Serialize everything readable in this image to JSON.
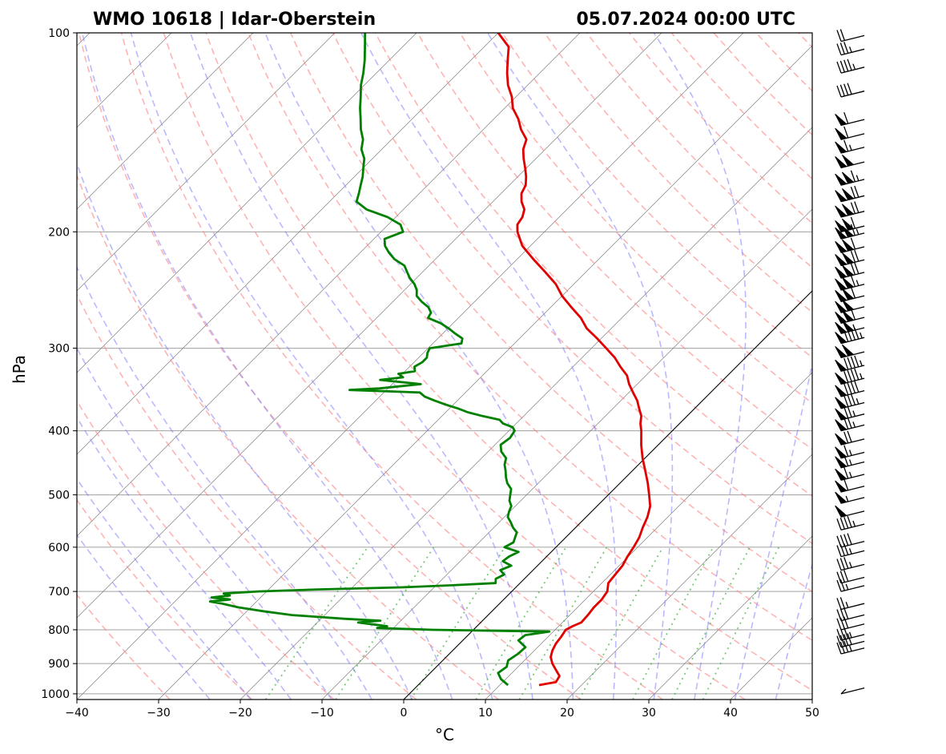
{
  "chart_data": {
    "type": "line",
    "title_left": "WMO 10618 | Idar-Oberstein",
    "title_right": "05.07.2024 00:00 UTC",
    "xlabel": "°C",
    "ylabel": "hPa",
    "xlim": [
      -40,
      50
    ],
    "ylim": [
      1020,
      100
    ],
    "y_scale": "log",
    "x_ticks": [
      -40,
      -30,
      -20,
      -10,
      0,
      10,
      20,
      30,
      40,
      50
    ],
    "x_tick_labels": [
      "−40",
      "−30",
      "−20",
      "−10",
      "0",
      "10",
      "20",
      "30",
      "40",
      "50"
    ],
    "y_ticks": [
      1000,
      900,
      800,
      700,
      600,
      500,
      400,
      300,
      200,
      100
    ],
    "y_tick_labels": [
      "1000",
      "900",
      "800",
      "700",
      "600",
      "500",
      "400",
      "300",
      "200",
      "100"
    ],
    "skew": 45,
    "grid": true,
    "colors": {
      "temperature": "#e00000",
      "dewpoint": "#008000",
      "dry_adiabats": "#ff8080",
      "moist_adiabats": "#8080ff",
      "mixing_ratio": "#40b040",
      "isotherms": "#808080",
      "isobars": "#a0a0a0",
      "zero_isotherm": "#000000"
    },
    "series": [
      {
        "name": "temperature",
        "points": [
          [
            970,
            14.8
          ],
          [
            960,
            16.5
          ],
          [
            940,
            16.2
          ],
          [
            920,
            15.0
          ],
          [
            900,
            13.8
          ],
          [
            880,
            12.8
          ],
          [
            860,
            12.2
          ],
          [
            840,
            11.8
          ],
          [
            820,
            11.6
          ],
          [
            800,
            11.3
          ],
          [
            790,
            11.7
          ],
          [
            780,
            12.3
          ],
          [
            760,
            12.2
          ],
          [
            740,
            12.0
          ],
          [
            720,
            12.0
          ],
          [
            700,
            11.7
          ],
          [
            680,
            10.8
          ],
          [
            660,
            10.6
          ],
          [
            640,
            10.4
          ],
          [
            620,
            9.9
          ],
          [
            600,
            9.5
          ],
          [
            580,
            9.0
          ],
          [
            560,
            8.2
          ],
          [
            540,
            7.5
          ],
          [
            520,
            6.5
          ],
          [
            500,
            5.0
          ],
          [
            480,
            3.4
          ],
          [
            460,
            1.6
          ],
          [
            440,
            -0.3
          ],
          [
            420,
            -2.1
          ],
          [
            400,
            -3.8
          ],
          [
            390,
            -4.8
          ],
          [
            380,
            -5.6
          ],
          [
            370,
            -6.8
          ],
          [
            360,
            -8.0
          ],
          [
            350,
            -9.5
          ],
          [
            340,
            -11.0
          ],
          [
            330,
            -12.3
          ],
          [
            320,
            -14.2
          ],
          [
            310,
            -16.0
          ],
          [
            300,
            -18.2
          ],
          [
            290,
            -20.5
          ],
          [
            280,
            -23.0
          ],
          [
            270,
            -25.0
          ],
          [
            260,
            -27.5
          ],
          [
            250,
            -30.0
          ],
          [
            240,
            -32.2
          ],
          [
            230,
            -35.0
          ],
          [
            220,
            -38.0
          ],
          [
            210,
            -41.0
          ],
          [
            200,
            -43.3
          ],
          [
            195,
            -44.2
          ],
          [
            190,
            -44.5
          ],
          [
            185,
            -45.2
          ],
          [
            180,
            -46.5
          ],
          [
            175,
            -47.5
          ],
          [
            170,
            -48.0
          ],
          [
            165,
            -49.0
          ],
          [
            160,
            -50.2
          ],
          [
            155,
            -51.5
          ],
          [
            150,
            -52.7
          ],
          [
            145,
            -53.5
          ],
          [
            140,
            -55.4
          ],
          [
            135,
            -57.0
          ],
          [
            130,
            -59.0
          ],
          [
            125,
            -60.5
          ],
          [
            120,
            -62.4
          ],
          [
            115,
            -64.0
          ],
          [
            110,
            -65.5
          ],
          [
            105,
            -67.0
          ],
          [
            100,
            -70.0
          ]
        ]
      },
      {
        "name": "dewpoint",
        "points": [
          [
            970,
            11.0
          ],
          [
            950,
            9.4
          ],
          [
            930,
            8.3
          ],
          [
            910,
            8.6
          ],
          [
            890,
            8.0
          ],
          [
            870,
            8.4
          ],
          [
            850,
            8.5
          ],
          [
            830,
            6.8
          ],
          [
            815,
            7.0
          ],
          [
            805,
            9.5
          ],
          [
            800,
            -5.0
          ],
          [
            795,
            -12.0
          ],
          [
            790,
            -11.0
          ],
          [
            785,
            -13.0
          ],
          [
            780,
            -15.0
          ],
          [
            775,
            -12.5
          ],
          [
            770,
            -17.0
          ],
          [
            760,
            -24.0
          ],
          [
            750,
            -28.0
          ],
          [
            740,
            -31.5
          ],
          [
            730,
            -34.0
          ],
          [
            725,
            -35.7
          ],
          [
            720,
            -33.5
          ],
          [
            715,
            -36.0
          ],
          [
            710,
            -34.0
          ],
          [
            705,
            -35.0
          ],
          [
            700,
            -31.0
          ],
          [
            695,
            -24.0
          ],
          [
            690,
            -14.0
          ],
          [
            685,
            -8.0
          ],
          [
            680,
            -3.0
          ],
          [
            670,
            -3.5
          ],
          [
            660,
            -3.0
          ],
          [
            650,
            -4.0
          ],
          [
            640,
            -3.2
          ],
          [
            630,
            -4.8
          ],
          [
            620,
            -4.6
          ],
          [
            610,
            -4.0
          ],
          [
            600,
            -6.3
          ],
          [
            590,
            -5.8
          ],
          [
            580,
            -6.2
          ],
          [
            570,
            -6.6
          ],
          [
            560,
            -7.7
          ],
          [
            550,
            -8.6
          ],
          [
            540,
            -9.6
          ],
          [
            530,
            -10.1
          ],
          [
            520,
            -10.5
          ],
          [
            510,
            -11.4
          ],
          [
            500,
            -12.0
          ],
          [
            490,
            -12.6
          ],
          [
            480,
            -13.8
          ],
          [
            470,
            -14.7
          ],
          [
            460,
            -15.5
          ],
          [
            450,
            -16.4
          ],
          [
            440,
            -17.0
          ],
          [
            430,
            -18.4
          ],
          [
            420,
            -19.3
          ],
          [
            410,
            -19.0
          ],
          [
            400,
            -19.3
          ],
          [
            395,
            -20.0
          ],
          [
            390,
            -21.6
          ],
          [
            385,
            -22.5
          ],
          [
            380,
            -25.0
          ],
          [
            375,
            -27.3
          ],
          [
            370,
            -29.0
          ],
          [
            365,
            -31.0
          ],
          [
            360,
            -32.8
          ],
          [
            355,
            -34.5
          ],
          [
            350,
            -35.6
          ],
          [
            347,
            -44.5
          ],
          [
            345,
            -41.0
          ],
          [
            340,
            -36.5
          ],
          [
            335,
            -42.0
          ],
          [
            332,
            -39.5
          ],
          [
            328,
            -40.5
          ],
          [
            325,
            -38.8
          ],
          [
            320,
            -39.4
          ],
          [
            315,
            -39.0
          ],
          [
            310,
            -39.0
          ],
          [
            305,
            -39.5
          ],
          [
            300,
            -39.8
          ],
          [
            295,
            -36.5
          ],
          [
            290,
            -37.0
          ],
          [
            285,
            -38.5
          ],
          [
            280,
            -39.9
          ],
          [
            275,
            -41.5
          ],
          [
            270,
            -43.7
          ],
          [
            265,
            -44.0
          ],
          [
            260,
            -45.0
          ],
          [
            255,
            -46.5
          ],
          [
            250,
            -47.8
          ],
          [
            245,
            -48.5
          ],
          [
            240,
            -49.5
          ],
          [
            235,
            -50.8
          ],
          [
            230,
            -51.9
          ],
          [
            225,
            -53.0
          ],
          [
            220,
            -55.0
          ],
          [
            215,
            -56.5
          ],
          [
            210,
            -57.8
          ],
          [
            205,
            -58.7
          ],
          [
            200,
            -57.3
          ],
          [
            195,
            -58.5
          ],
          [
            190,
            -61.0
          ],
          [
            185,
            -64.5
          ],
          [
            180,
            -66.7
          ],
          [
            175,
            -67.4
          ],
          [
            170,
            -68.2
          ],
          [
            165,
            -69.0
          ],
          [
            160,
            -70.0
          ],
          [
            155,
            -71.0
          ],
          [
            150,
            -72.5
          ],
          [
            145,
            -73.5
          ],
          [
            140,
            -75.0
          ],
          [
            135,
            -76.3
          ],
          [
            130,
            -77.7
          ],
          [
            125,
            -79.0
          ],
          [
            120,
            -80.4
          ],
          [
            115,
            -81.6
          ],
          [
            110,
            -83.0
          ],
          [
            105,
            -84.6
          ],
          [
            100,
            -86.3
          ]
        ]
      }
    ],
    "wind_barbs": [
      [
        1000,
        3
      ],
      [
        870,
        35
      ],
      [
        850,
        40
      ],
      [
        830,
        35
      ],
      [
        800,
        30
      ],
      [
        775,
        30
      ],
      [
        745,
        25
      ],
      [
        700,
        25
      ],
      [
        680,
        30
      ],
      [
        650,
        35
      ],
      [
        620,
        35
      ],
      [
        600,
        40
      ],
      [
        565,
        45
      ],
      [
        540,
        50
      ],
      [
        515,
        55
      ],
      [
        495,
        60
      ],
      [
        475,
        65
      ],
      [
        455,
        65
      ],
      [
        440,
        65
      ],
      [
        420,
        70
      ],
      [
        400,
        75
      ],
      [
        385,
        75
      ],
      [
        370,
        85
      ],
      [
        355,
        90
      ],
      [
        340,
        95
      ],
      [
        325,
        95
      ],
      [
        310,
        100
      ],
      [
        295,
        95
      ],
      [
        285,
        105
      ],
      [
        275,
        110
      ],
      [
        265,
        100
      ],
      [
        255,
        110
      ],
      [
        245,
        115
      ],
      [
        235,
        120
      ],
      [
        225,
        120
      ],
      [
        215,
        110
      ],
      [
        205,
        115
      ],
      [
        200,
        110
      ],
      [
        190,
        120
      ],
      [
        180,
        120
      ],
      [
        170,
        115
      ],
      [
        160,
        100
      ],
      [
        152,
        65
      ],
      [
        145,
        60
      ],
      [
        138,
        60
      ],
      [
        125,
        40
      ],
      [
        115,
        45
      ],
      [
        108,
        35
      ],
      [
        103,
        20
      ]
    ]
  }
}
